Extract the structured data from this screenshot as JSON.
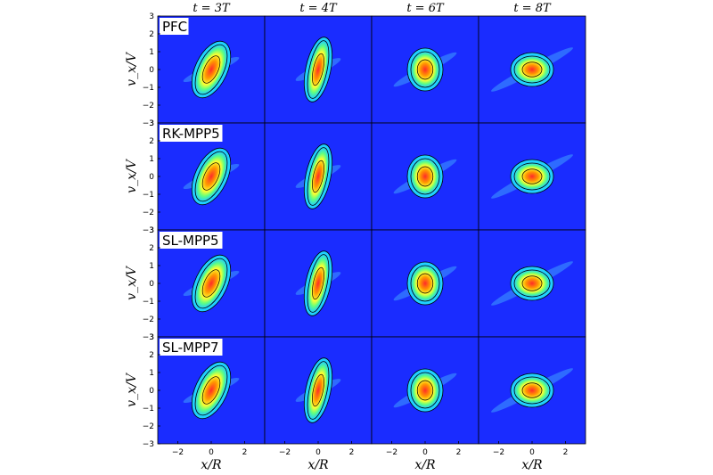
{
  "chart_data": {
    "type": "heatmap",
    "columns": [
      "t = 3T",
      "t = 4T",
      "t = 6T",
      "t = 8T"
    ],
    "rows": [
      "PFC",
      "RK-MPP5",
      "SL-MPP5",
      "SL-MPP7"
    ],
    "xlabel": "x/R",
    "ylabel": "v_x/V",
    "xlim": [
      -3.2,
      3.2
    ],
    "ylim": [
      -3,
      3
    ],
    "xticks": [
      -2,
      0,
      2
    ],
    "yticks": [
      -3,
      -2,
      -1,
      0,
      1,
      2,
      3
    ],
    "colormap": "jet",
    "grid": false,
    "colors": {
      "background": "#1a2cff",
      "tick": "#000000"
    }
  }
}
